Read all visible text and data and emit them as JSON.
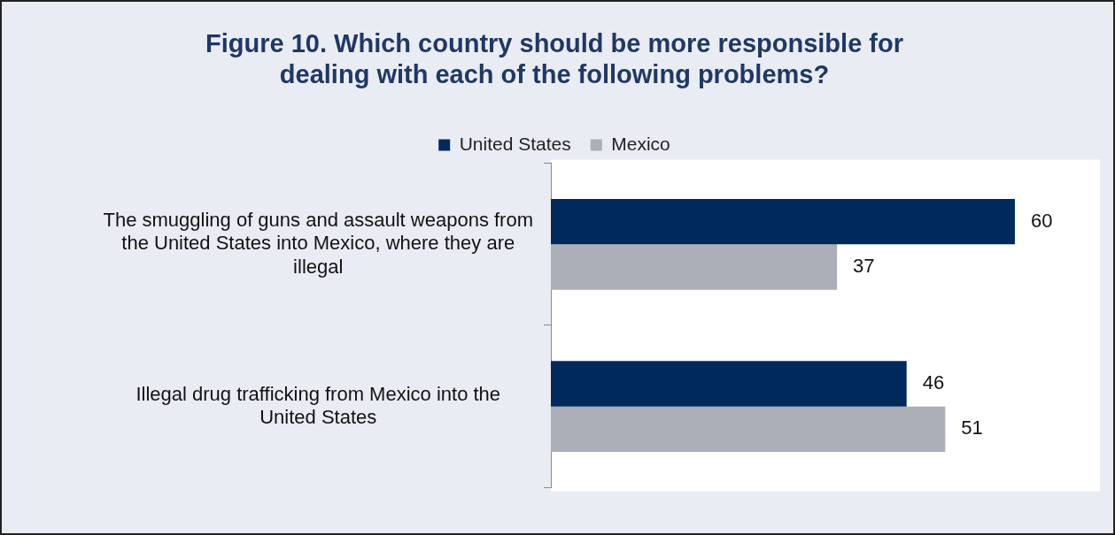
{
  "chart_data": {
    "type": "bar",
    "orientation": "horizontal",
    "title": "Figure 10. Which country should be more responsible for dealing with each of the following problems?",
    "categories": [
      "The smuggling of guns and assault weapons from the United States into Mexico, where they are illegal",
      "Illegal drug trafficking from Mexico into the United States"
    ],
    "series": [
      {
        "name": "United States",
        "color": "#002a5c",
        "values": [
          60,
          46
        ]
      },
      {
        "name": "Mexico",
        "color": "#abafb8",
        "values": [
          37,
          51
        ]
      }
    ],
    "xlim": [
      0,
      71
    ],
    "data_labels": true,
    "legend": "top"
  }
}
